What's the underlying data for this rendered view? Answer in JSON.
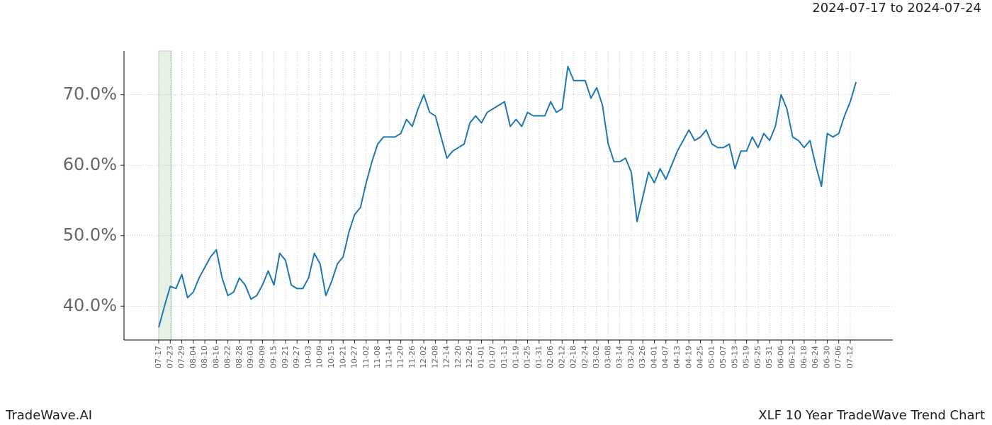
{
  "chart_data": {
    "type": "line",
    "title": "2024-07-17 to 2024-07-24",
    "footer_left": "TradeWave.AI",
    "footer_right": "XLF 10 Year TradeWave Trend Chart",
    "categories": [
      "07-17",
      null,
      "07-23",
      null,
      "07-29",
      null,
      "08-04",
      null,
      "08-10",
      null,
      "08-16",
      null,
      "08-22",
      null,
      "08-28",
      null,
      "09-03",
      null,
      "09-09",
      null,
      "09-15",
      null,
      "09-21",
      null,
      "09-27",
      null,
      "10-03",
      null,
      "10-09",
      null,
      "10-15",
      null,
      "10-21",
      null,
      "10-27",
      null,
      "11-02",
      null,
      "11-08",
      null,
      "11-14",
      null,
      "11-20",
      null,
      "11-26",
      null,
      "12-02",
      null,
      "12-08",
      null,
      "12-14",
      null,
      "12-20",
      null,
      "12-26",
      null,
      "01-01",
      null,
      "01-07",
      null,
      "01-13",
      null,
      "01-19",
      null,
      "01-25",
      null,
      "01-31",
      null,
      "02-06",
      null,
      "02-12",
      null,
      "02-18",
      null,
      "02-24",
      null,
      "03-02",
      null,
      "03-08",
      null,
      "03-14",
      null,
      "03-20",
      null,
      "03-26",
      null,
      "04-01",
      null,
      "04-07",
      null,
      "04-13",
      null,
      "04-19",
      null,
      "04-25",
      null,
      "05-01",
      null,
      "05-07",
      null,
      "05-13",
      null,
      "05-19",
      null,
      "05-25",
      null,
      "05-31",
      null,
      "06-06",
      null,
      "06-12",
      null,
      "06-18",
      null,
      "06-24",
      null,
      "06-30",
      null,
      "07-06",
      null,
      "07-12",
      null
    ],
    "values": [
      37,
      40,
      42.8,
      42.5,
      44.5,
      41.2,
      42,
      44,
      45.5,
      47,
      48,
      44,
      41.5,
      42,
      44,
      43,
      41,
      41.5,
      43,
      45,
      43,
      47.5,
      46.5,
      43,
      42.5,
      42.5,
      44,
      47.5,
      46,
      41.5,
      43.5,
      46,
      47,
      50.5,
      53,
      54,
      57.5,
      60.5,
      63,
      64,
      64,
      64,
      64.5,
      66.5,
      65.5,
      68,
      70,
      67.5,
      67,
      64,
      61,
      62,
      62.5,
      63,
      66,
      67,
      66,
      67.5,
      68,
      68.5,
      69,
      65.5,
      66.5,
      65.5,
      67.5,
      67,
      67,
      67,
      69,
      67.5,
      68,
      74,
      72,
      72,
      72,
      69.5,
      71,
      68.5,
      63,
      60.5,
      60.5,
      61,
      59,
      52,
      55.5,
      59,
      57.5,
      59.5,
      58,
      60,
      62,
      63.5,
      65,
      63.5,
      64,
      65,
      63,
      62.5,
      62.5,
      63,
      59.5,
      62,
      62,
      64,
      62.5,
      64.5,
      63.5,
      65.5,
      70,
      68,
      64,
      63.5,
      62.5,
      63.5,
      60,
      57,
      64.5,
      64,
      64.5,
      67,
      69,
      71.8
    ],
    "color": "#1f77b4",
    "ylim": [
      35.2,
      76.2
    ],
    "yticks": [
      {
        "value": 40,
        "label": "40.0%"
      },
      {
        "value": 50,
        "label": "50.0%"
      },
      {
        "value": 60,
        "label": "60.0%"
      },
      {
        "value": 70,
        "label": "70.0%"
      }
    ],
    "grid": true
  }
}
